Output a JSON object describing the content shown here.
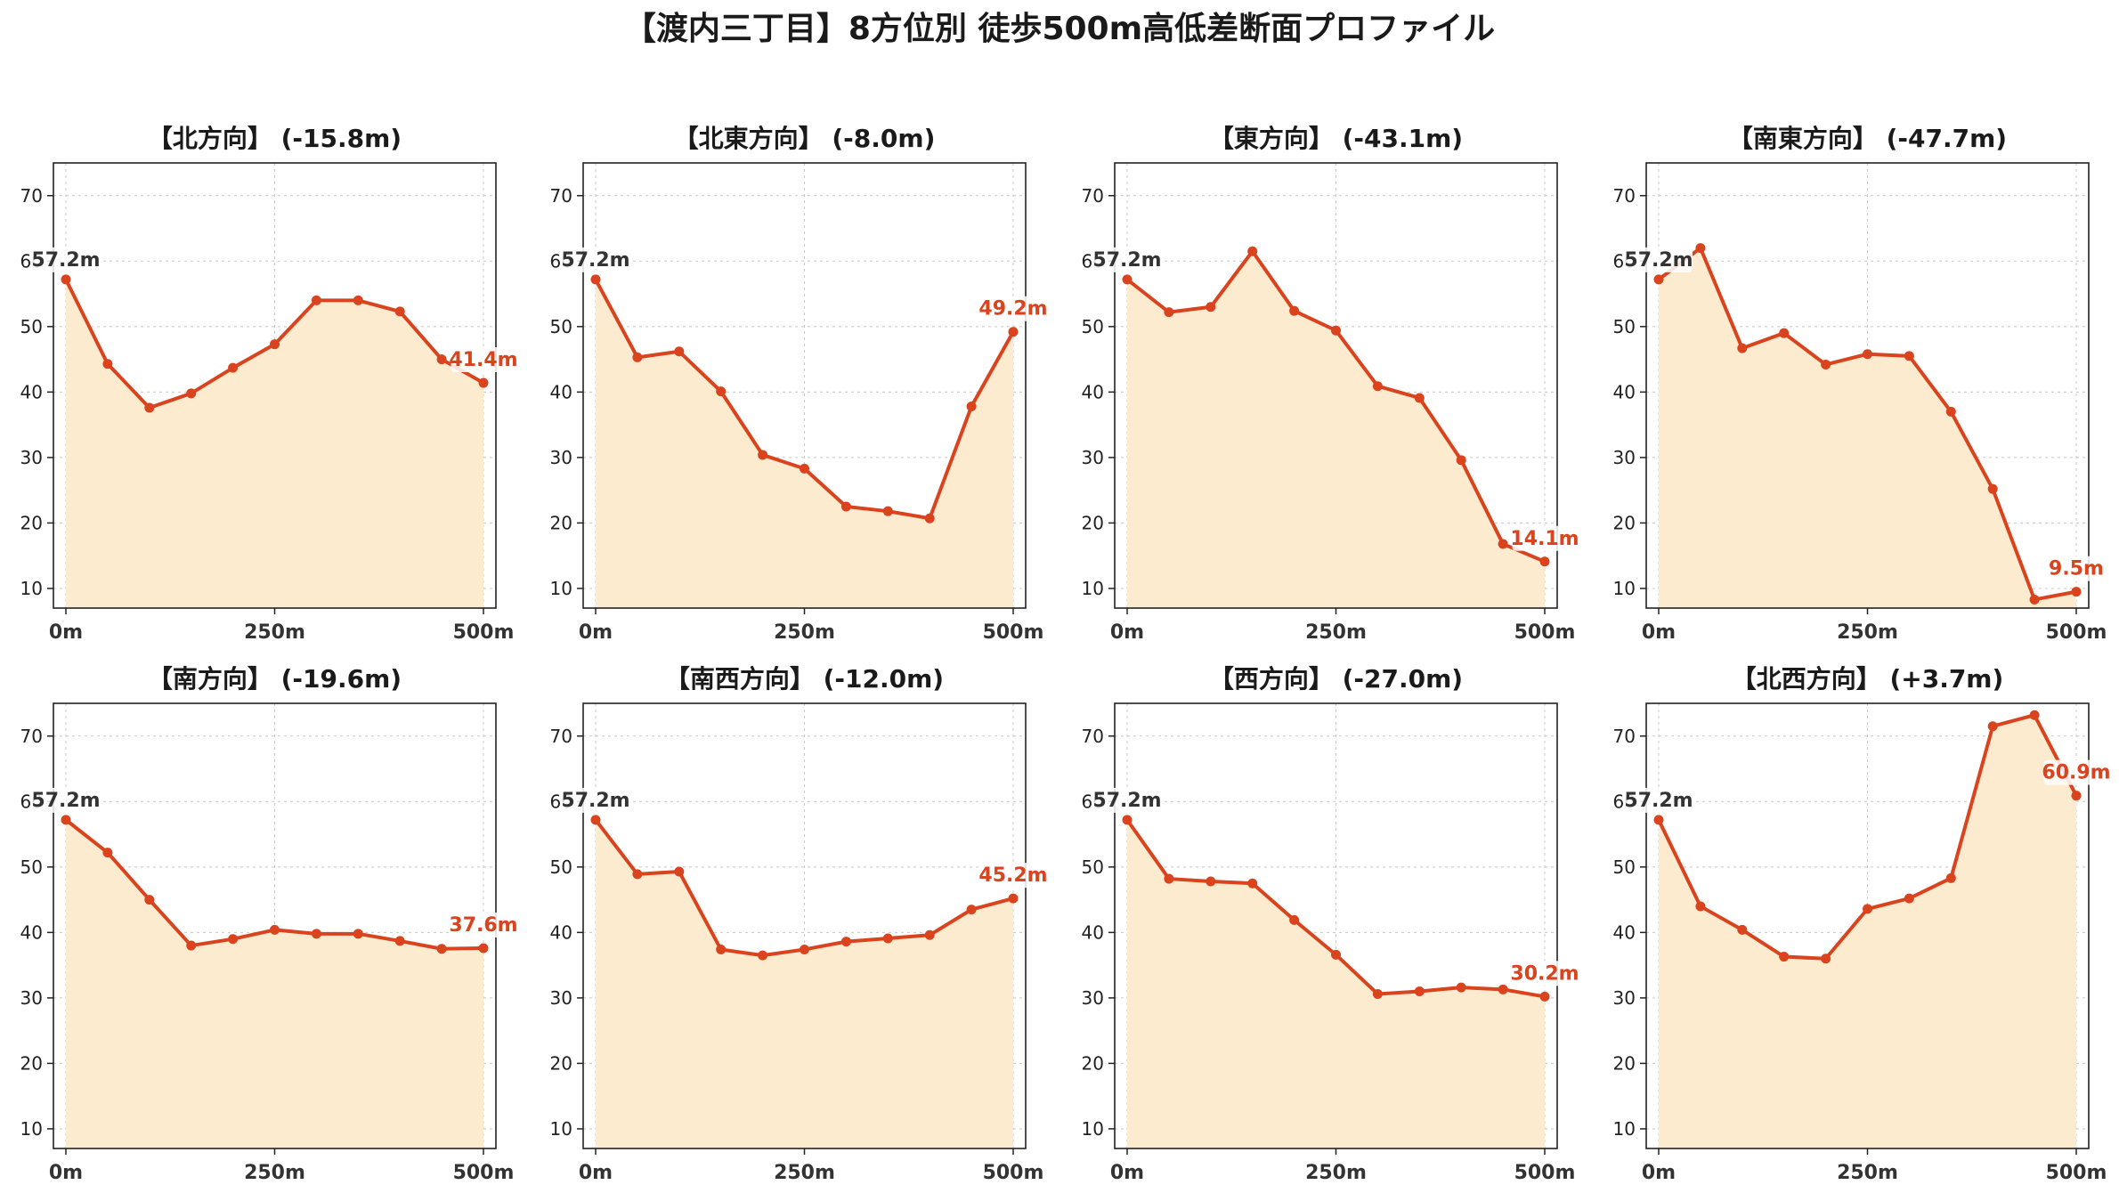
{
  "title": "【渡内三丁目】8方位別 徒歩500m高低差断面プロファイル",
  "colors": {
    "line": "#d9431e",
    "fill": "#fdebd0",
    "grid": "#c8c8c8",
    "axis": "#222222",
    "start_label": "#333333"
  },
  "chart_data": [
    {
      "type": "area",
      "title": "【北方向】 (-15.8m)",
      "x": [
        0,
        50,
        100,
        150,
        200,
        250,
        300,
        350,
        400,
        450,
        500
      ],
      "y": [
        57.2,
        44.3,
        37.6,
        39.8,
        43.7,
        47.3,
        54.0,
        54.0,
        52.3,
        45.0,
        41.4
      ],
      "xticks": [
        "0m",
        "250m",
        "500m"
      ],
      "yticks": [
        10,
        20,
        30,
        40,
        50,
        60,
        70
      ],
      "ylim": [
        7,
        75
      ],
      "start_label": "57.2m",
      "end_label": "41.4m",
      "grid": true
    },
    {
      "type": "area",
      "title": "【北東方向】 (-8.0m)",
      "x": [
        0,
        50,
        100,
        150,
        200,
        250,
        300,
        350,
        400,
        450,
        500
      ],
      "y": [
        57.2,
        45.3,
        46.2,
        40.1,
        30.4,
        28.3,
        22.5,
        21.8,
        20.7,
        37.8,
        49.2
      ],
      "xticks": [
        "0m",
        "250m",
        "500m"
      ],
      "yticks": [
        10,
        20,
        30,
        40,
        50,
        60,
        70
      ],
      "ylim": [
        7,
        75
      ],
      "start_label": "57.2m",
      "end_label": "49.2m",
      "grid": true
    },
    {
      "type": "area",
      "title": "【東方向】 (-43.1m)",
      "x": [
        0,
        50,
        100,
        150,
        200,
        250,
        300,
        350,
        400,
        450,
        500
      ],
      "y": [
        57.2,
        52.2,
        53.0,
        61.5,
        52.4,
        49.4,
        40.9,
        39.1,
        29.6,
        16.8,
        14.1
      ],
      "xticks": [
        "0m",
        "250m",
        "500m"
      ],
      "yticks": [
        10,
        20,
        30,
        40,
        50,
        60,
        70
      ],
      "ylim": [
        7,
        75
      ],
      "start_label": "57.2m",
      "end_label": "14.1m",
      "grid": true
    },
    {
      "type": "area",
      "title": "【南東方向】 (-47.7m)",
      "x": [
        0,
        50,
        100,
        150,
        200,
        250,
        300,
        350,
        400,
        450,
        500
      ],
      "y": [
        57.2,
        62.0,
        46.7,
        49.0,
        44.2,
        45.8,
        45.5,
        37.0,
        25.2,
        8.3,
        9.5
      ],
      "xticks": [
        "0m",
        "250m",
        "500m"
      ],
      "yticks": [
        10,
        20,
        30,
        40,
        50,
        60,
        70
      ],
      "ylim": [
        7,
        75
      ],
      "start_label": "57.2m",
      "end_label": "9.5m",
      "grid": true
    },
    {
      "type": "area",
      "title": "【南方向】 (-19.6m)",
      "x": [
        0,
        50,
        100,
        150,
        200,
        250,
        300,
        350,
        400,
        450,
        500
      ],
      "y": [
        57.2,
        52.2,
        45.0,
        38.0,
        39.0,
        40.4,
        39.8,
        39.8,
        38.7,
        37.5,
        37.6
      ],
      "xticks": [
        "0m",
        "250m",
        "500m"
      ],
      "yticks": [
        10,
        20,
        30,
        40,
        50,
        60,
        70
      ],
      "ylim": [
        7,
        75
      ],
      "start_label": "57.2m",
      "end_label": "37.6m",
      "grid": true
    },
    {
      "type": "area",
      "title": "【南西方向】 (-12.0m)",
      "x": [
        0,
        50,
        100,
        150,
        200,
        250,
        300,
        350,
        400,
        450,
        500
      ],
      "y": [
        57.2,
        48.9,
        49.3,
        37.4,
        36.5,
        37.4,
        38.6,
        39.1,
        39.6,
        43.5,
        45.2
      ],
      "xticks": [
        "0m",
        "250m",
        "500m"
      ],
      "yticks": [
        10,
        20,
        30,
        40,
        50,
        60,
        70
      ],
      "ylim": [
        7,
        75
      ],
      "start_label": "57.2m",
      "end_label": "45.2m",
      "grid": true
    },
    {
      "type": "area",
      "title": "【西方向】 (-27.0m)",
      "x": [
        0,
        50,
        100,
        150,
        200,
        250,
        300,
        350,
        400,
        450,
        500
      ],
      "y": [
        57.2,
        48.2,
        47.8,
        47.5,
        41.9,
        36.6,
        30.6,
        31.0,
        31.6,
        31.3,
        30.2
      ],
      "xticks": [
        "0m",
        "250m",
        "500m"
      ],
      "yticks": [
        10,
        20,
        30,
        40,
        50,
        60,
        70
      ],
      "ylim": [
        7,
        75
      ],
      "start_label": "57.2m",
      "end_label": "30.2m",
      "grid": true
    },
    {
      "type": "area",
      "title": "【北西方向】 (+3.7m)",
      "x": [
        0,
        50,
        100,
        150,
        200,
        250,
        300,
        350,
        400,
        450,
        500
      ],
      "y": [
        57.2,
        44.0,
        40.4,
        36.3,
        36.0,
        43.6,
        45.2,
        48.3,
        71.5,
        73.2,
        60.9
      ],
      "xticks": [
        "0m",
        "250m",
        "500m"
      ],
      "yticks": [
        10,
        20,
        30,
        40,
        50,
        60,
        70
      ],
      "ylim": [
        7,
        75
      ],
      "start_label": "57.2m",
      "end_label": "60.9m",
      "grid": true
    }
  ]
}
